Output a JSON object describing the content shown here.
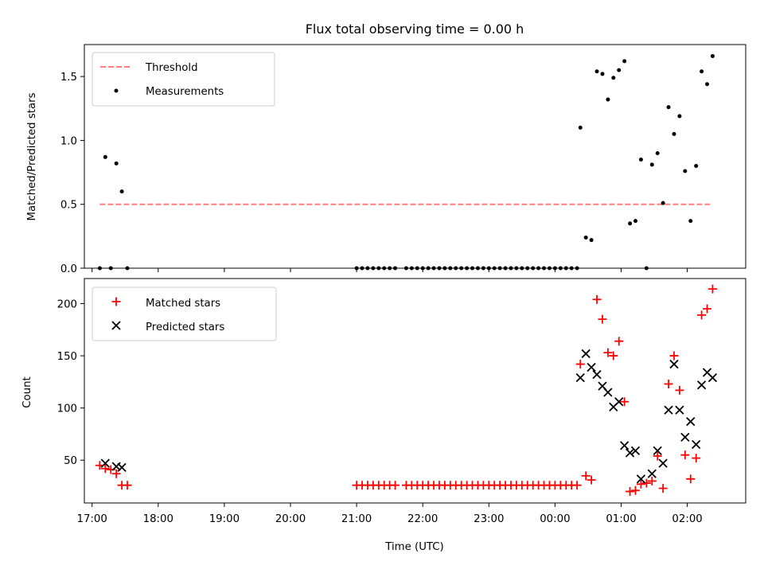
{
  "chart_data": [
    {
      "type": "scatter",
      "title": "Flux total observing time = 0.00 h",
      "xlabel": "",
      "ylabel": "Matched/Predicted stars",
      "xlim": [
        "16:53",
        "02:53"
      ],
      "ylim": [
        0,
        1.75
      ],
      "yticks": [
        "0.0",
        "0.5",
        "1.0",
        "1.5"
      ],
      "grid": false,
      "legend_position": "upper left",
      "threshold": {
        "name": "Threshold",
        "value": 0.5,
        "x": [
          "17:07",
          "02:23"
        ],
        "color": "#ff7f7f",
        "style": "dashed"
      },
      "series": [
        {
          "name": "Measurements",
          "color": "#000000",
          "marker": "dot",
          "points": [
            [
              "17:07",
              0.0
            ],
            [
              "17:12",
              0.87
            ],
            [
              "17:17",
              0.0
            ],
            [
              "17:22",
              0.82
            ],
            [
              "17:27",
              0.6
            ],
            [
              "17:32",
              0.0
            ],
            [
              "21:00",
              0.0
            ],
            [
              "21:05",
              0.0
            ],
            [
              "21:10",
              0.0
            ],
            [
              "21:15",
              0.0
            ],
            [
              "21:20",
              0.0
            ],
            [
              "21:25",
              0.0
            ],
            [
              "21:30",
              0.0
            ],
            [
              "21:35",
              0.0
            ],
            [
              "21:45",
              0.0
            ],
            [
              "21:50",
              0.0
            ],
            [
              "21:55",
              0.0
            ],
            [
              "22:00",
              0.0
            ],
            [
              "22:05",
              0.0
            ],
            [
              "22:10",
              0.0
            ],
            [
              "22:15",
              0.0
            ],
            [
              "22:20",
              0.0
            ],
            [
              "22:25",
              0.0
            ],
            [
              "22:30",
              0.0
            ],
            [
              "22:35",
              0.0
            ],
            [
              "22:40",
              0.0
            ],
            [
              "22:45",
              0.0
            ],
            [
              "22:50",
              0.0
            ],
            [
              "22:55",
              0.0
            ],
            [
              "23:00",
              0.0
            ],
            [
              "23:05",
              0.0
            ],
            [
              "23:10",
              0.0
            ],
            [
              "23:15",
              0.0
            ],
            [
              "23:20",
              0.0
            ],
            [
              "23:25",
              0.0
            ],
            [
              "23:30",
              0.0
            ],
            [
              "23:35",
              0.0
            ],
            [
              "23:40",
              0.0
            ],
            [
              "23:45",
              0.0
            ],
            [
              "23:50",
              0.0
            ],
            [
              "23:55",
              0.0
            ],
            [
              "00:00",
              0.0
            ],
            [
              "00:05",
              0.0
            ],
            [
              "00:10",
              0.0
            ],
            [
              "00:15",
              0.0
            ],
            [
              "00:20",
              0.0
            ],
            [
              "00:23",
              1.1
            ],
            [
              "00:28",
              0.24
            ],
            [
              "00:33",
              0.22
            ],
            [
              "00:38",
              1.54
            ],
            [
              "00:43",
              1.52
            ],
            [
              "00:48",
              1.32
            ],
            [
              "00:53",
              1.49
            ],
            [
              "00:58",
              1.55
            ],
            [
              "01:03",
              1.62
            ],
            [
              "01:08",
              0.35
            ],
            [
              "01:13",
              0.37
            ],
            [
              "01:18",
              0.85
            ],
            [
              "01:23",
              0.0
            ],
            [
              "01:28",
              0.81
            ],
            [
              "01:33",
              0.9
            ],
            [
              "01:38",
              0.51
            ],
            [
              "01:43",
              1.26
            ],
            [
              "01:48",
              1.05
            ],
            [
              "01:53",
              1.19
            ],
            [
              "01:58",
              0.76
            ],
            [
              "02:03",
              0.37
            ],
            [
              "02:08",
              0.8
            ],
            [
              "02:13",
              1.54
            ],
            [
              "02:18",
              1.44
            ],
            [
              "02:23",
              1.66
            ]
          ]
        }
      ]
    },
    {
      "type": "scatter",
      "title": "",
      "xlabel": "Time (UTC)",
      "ylabel": "Count",
      "xlim": [
        "16:53",
        "02:53"
      ],
      "ylim": [
        9,
        224
      ],
      "xticks": [
        "17:00",
        "18:00",
        "19:00",
        "20:00",
        "21:00",
        "22:00",
        "23:00",
        "00:00",
        "01:00",
        "02:00"
      ],
      "yticks": [
        "50",
        "100",
        "150",
        "200"
      ],
      "grid": false,
      "legend_position": "upper left",
      "series": [
        {
          "name": "Matched stars",
          "color": "#ff0000",
          "marker": "plus",
          "points": [
            [
              "17:07",
              45
            ],
            [
              "17:12",
              42
            ],
            [
              "17:17",
              41
            ],
            [
              "17:22",
              37
            ],
            [
              "17:27",
              26
            ],
            [
              "17:32",
              26
            ],
            [
              "21:00",
              26
            ],
            [
              "21:05",
              26
            ],
            [
              "21:10",
              26
            ],
            [
              "21:15",
              26
            ],
            [
              "21:20",
              26
            ],
            [
              "21:25",
              26
            ],
            [
              "21:30",
              26
            ],
            [
              "21:35",
              26
            ],
            [
              "21:45",
              26
            ],
            [
              "21:50",
              26
            ],
            [
              "21:55",
              26
            ],
            [
              "22:00",
              26
            ],
            [
              "22:05",
              26
            ],
            [
              "22:10",
              26
            ],
            [
              "22:15",
              26
            ],
            [
              "22:20",
              26
            ],
            [
              "22:25",
              26
            ],
            [
              "22:30",
              26
            ],
            [
              "22:35",
              26
            ],
            [
              "22:40",
              26
            ],
            [
              "22:45",
              26
            ],
            [
              "22:50",
              26
            ],
            [
              "22:55",
              26
            ],
            [
              "23:00",
              26
            ],
            [
              "23:05",
              26
            ],
            [
              "23:10",
              26
            ],
            [
              "23:15",
              26
            ],
            [
              "23:20",
              26
            ],
            [
              "23:25",
              26
            ],
            [
              "23:30",
              26
            ],
            [
              "23:35",
              26
            ],
            [
              "23:40",
              26
            ],
            [
              "23:45",
              26
            ],
            [
              "23:50",
              26
            ],
            [
              "23:55",
              26
            ],
            [
              "00:00",
              26
            ],
            [
              "00:05",
              26
            ],
            [
              "00:10",
              26
            ],
            [
              "00:15",
              26
            ],
            [
              "00:20",
              26
            ],
            [
              "00:23",
              142
            ],
            [
              "00:28",
              35
            ],
            [
              "00:33",
              31
            ],
            [
              "00:38",
              204
            ],
            [
              "00:43",
              185
            ],
            [
              "00:48",
              153
            ],
            [
              "00:53",
              150
            ],
            [
              "00:58",
              164
            ],
            [
              "01:03",
              106
            ],
            [
              "01:08",
              20
            ],
            [
              "01:13",
              21
            ],
            [
              "01:18",
              27
            ],
            [
              "01:23",
              28
            ],
            [
              "01:28",
              30
            ],
            [
              "01:33",
              54
            ],
            [
              "01:38",
              23
            ],
            [
              "01:43",
              123
            ],
            [
              "01:48",
              150
            ],
            [
              "01:53",
              117
            ],
            [
              "01:58",
              55
            ],
            [
              "02:03",
              32
            ],
            [
              "02:08",
              52
            ],
            [
              "02:13",
              189
            ],
            [
              "02:18",
              195
            ],
            [
              "02:23",
              214
            ]
          ]
        },
        {
          "name": "Predicted stars",
          "color": "#000000",
          "marker": "x",
          "points": [
            [
              "17:12",
              47
            ],
            [
              "17:22",
              44
            ],
            [
              "17:27",
              43
            ],
            [
              "00:23",
              129
            ],
            [
              "00:28",
              152
            ],
            [
              "00:33",
              139
            ],
            [
              "00:38",
              132
            ],
            [
              "00:43",
              121
            ],
            [
              "00:48",
              115
            ],
            [
              "00:53",
              101
            ],
            [
              "00:58",
              106
            ],
            [
              "01:03",
              64
            ],
            [
              "01:08",
              57
            ],
            [
              "01:13",
              59
            ],
            [
              "01:18",
              32
            ],
            [
              "01:28",
              37
            ],
            [
              "01:33",
              59
            ],
            [
              "01:38",
              47
            ],
            [
              "01:43",
              98
            ],
            [
              "01:48",
              142
            ],
            [
              "01:53",
              98
            ],
            [
              "01:58",
              72
            ],
            [
              "02:03",
              87
            ],
            [
              "02:08",
              65
            ],
            [
              "02:13",
              122
            ],
            [
              "02:18",
              134
            ],
            [
              "02:23",
              129
            ]
          ]
        }
      ]
    }
  ]
}
